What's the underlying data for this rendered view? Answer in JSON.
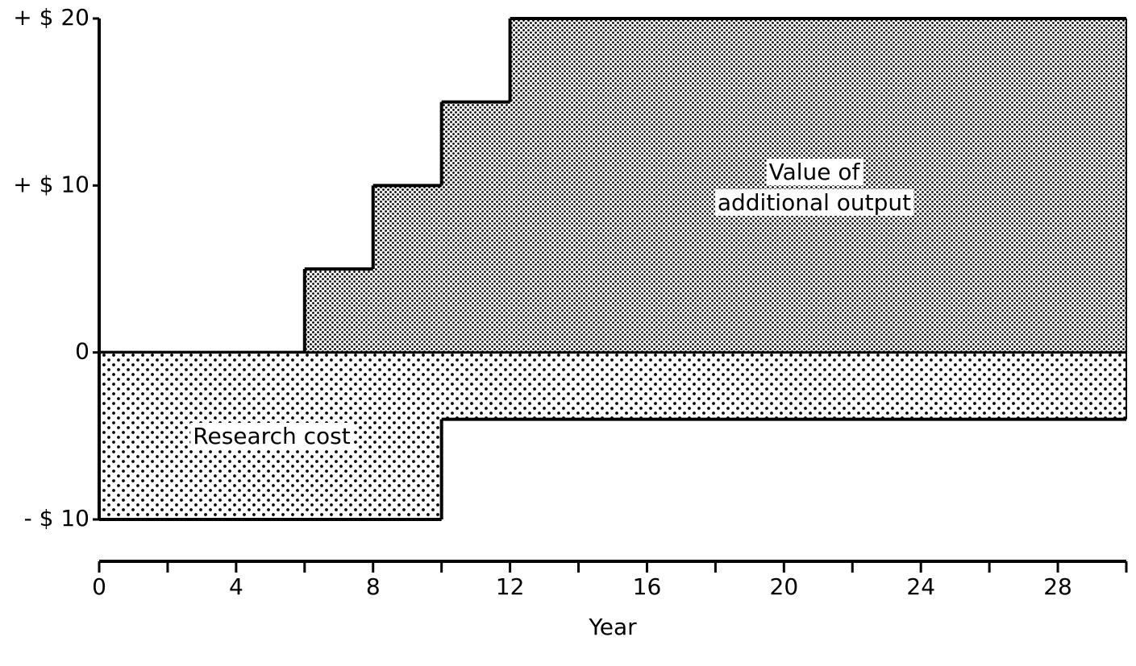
{
  "chart_data": {
    "type": "step-area",
    "xlabel": "Year",
    "xlim": [
      0,
      30
    ],
    "xticks": [
      0,
      4,
      8,
      12,
      16,
      20,
      24,
      28
    ],
    "xminorticks": [
      2,
      6,
      10,
      14,
      18,
      22,
      26,
      30
    ],
    "ylim": [
      -10,
      20
    ],
    "yticks": [
      {
        "value": 20,
        "label": "+ $ 20"
      },
      {
        "value": 10,
        "label": "+ $ 10"
      },
      0,
      {
        "value": -10,
        "label": "- $ 10"
      }
    ],
    "series": [
      {
        "label": [
          "Value of",
          "additional output"
        ],
        "pattern": "fine",
        "color": "#000000",
        "x": [
          0,
          6,
          8,
          10,
          12
        ],
        "values": [
          0,
          5,
          10,
          15,
          20
        ]
      },
      {
        "label": [
          "Research cost"
        ],
        "pattern": "coarse",
        "color": "#000000",
        "x": [
          0,
          10
        ],
        "values": [
          -10,
          -4
        ]
      }
    ]
  }
}
